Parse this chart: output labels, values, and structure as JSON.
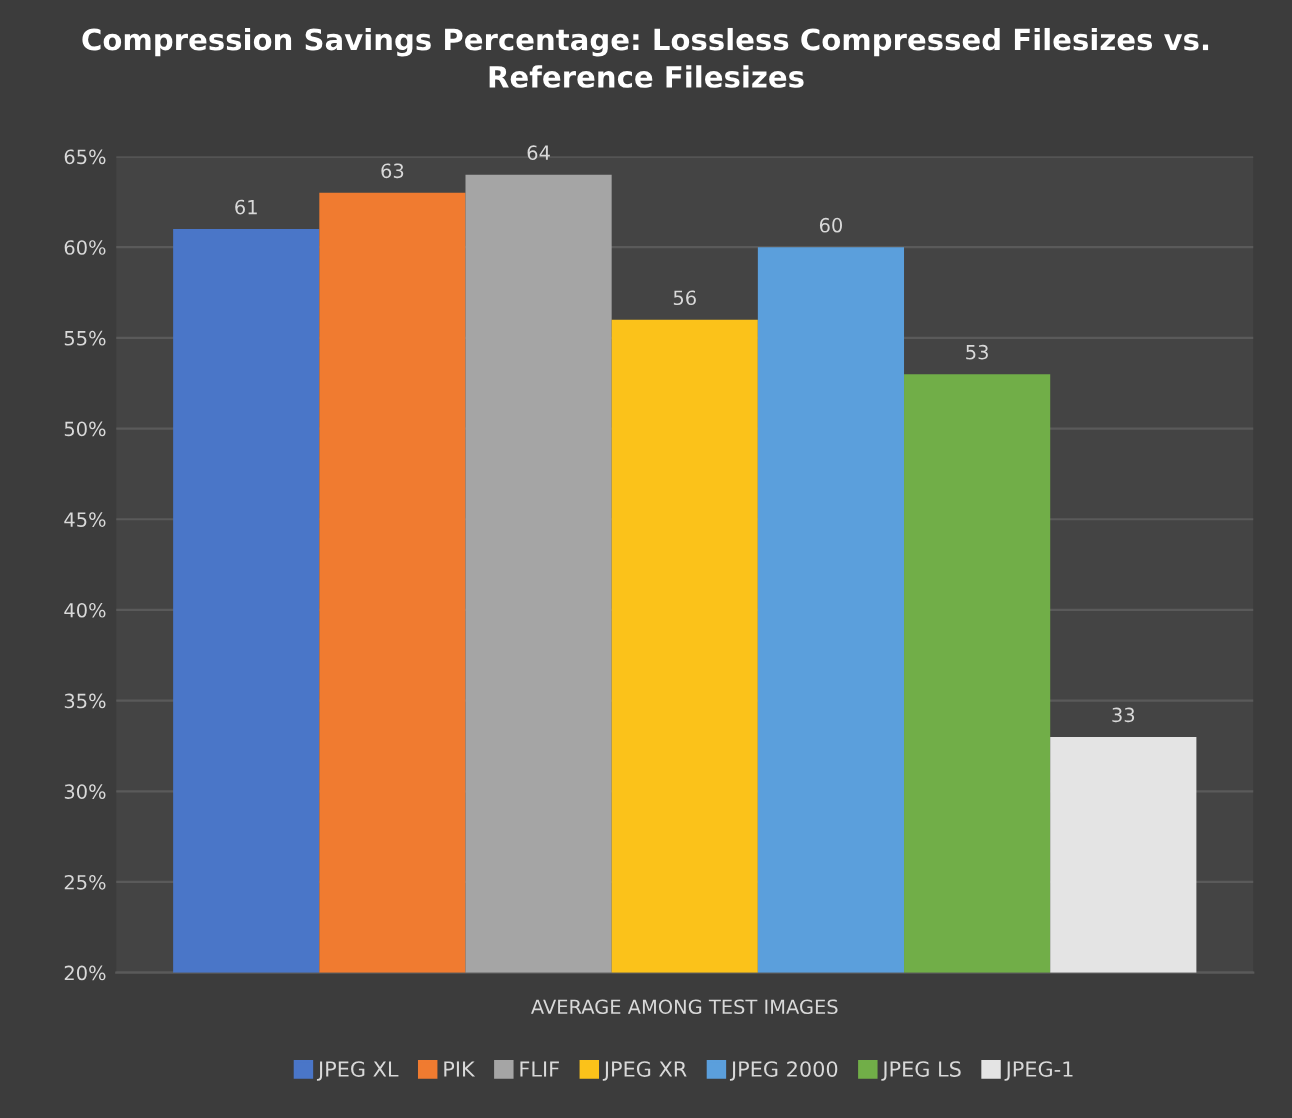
{
  "chart_data": {
    "type": "bar",
    "title": "Compression Savings Percentage: Lossless Compressed Filesizes vs.\nReference Filesizes",
    "xlabel": "AVERAGE AMONG TEST IMAGES",
    "categories": [
      null
    ],
    "series": [
      {
        "name": "JPEG XL",
        "color": "#4a76c8",
        "values": [
          61
        ]
      },
      {
        "name": "PIK",
        "color": "#f07b30",
        "values": [
          63
        ]
      },
      {
        "name": "FLIF",
        "color": "#a5a5a5",
        "values": [
          64
        ]
      },
      {
        "name": "JPEG XR",
        "color": "#fbc21a",
        "values": [
          56
        ]
      },
      {
        "name": "JPEG 2000",
        "color": "#5b9fdc",
        "values": [
          60
        ]
      },
      {
        "name": "JPEG LS",
        "color": "#71ae48",
        "values": [
          53
        ]
      },
      {
        "name": "JPEG-1",
        "color": "#e4e4e4",
        "values": [
          33
        ]
      }
    ],
    "ylim": [
      20,
      65
    ],
    "yticks": [
      {
        "value": 20,
        "label": "20%"
      },
      {
        "value": 25,
        "label": "25%"
      },
      {
        "value": 30,
        "label": "30%"
      },
      {
        "value": 35,
        "label": "35%"
      },
      {
        "value": 40,
        "label": "40%"
      },
      {
        "value": 45,
        "label": "45%"
      },
      {
        "value": 50,
        "label": "50%"
      },
      {
        "value": 55,
        "label": "55%"
      },
      {
        "value": 60,
        "label": "60%"
      },
      {
        "value": 65,
        "label": "65%"
      }
    ],
    "grid": "y",
    "legend": "bottom",
    "data_labels": true
  }
}
